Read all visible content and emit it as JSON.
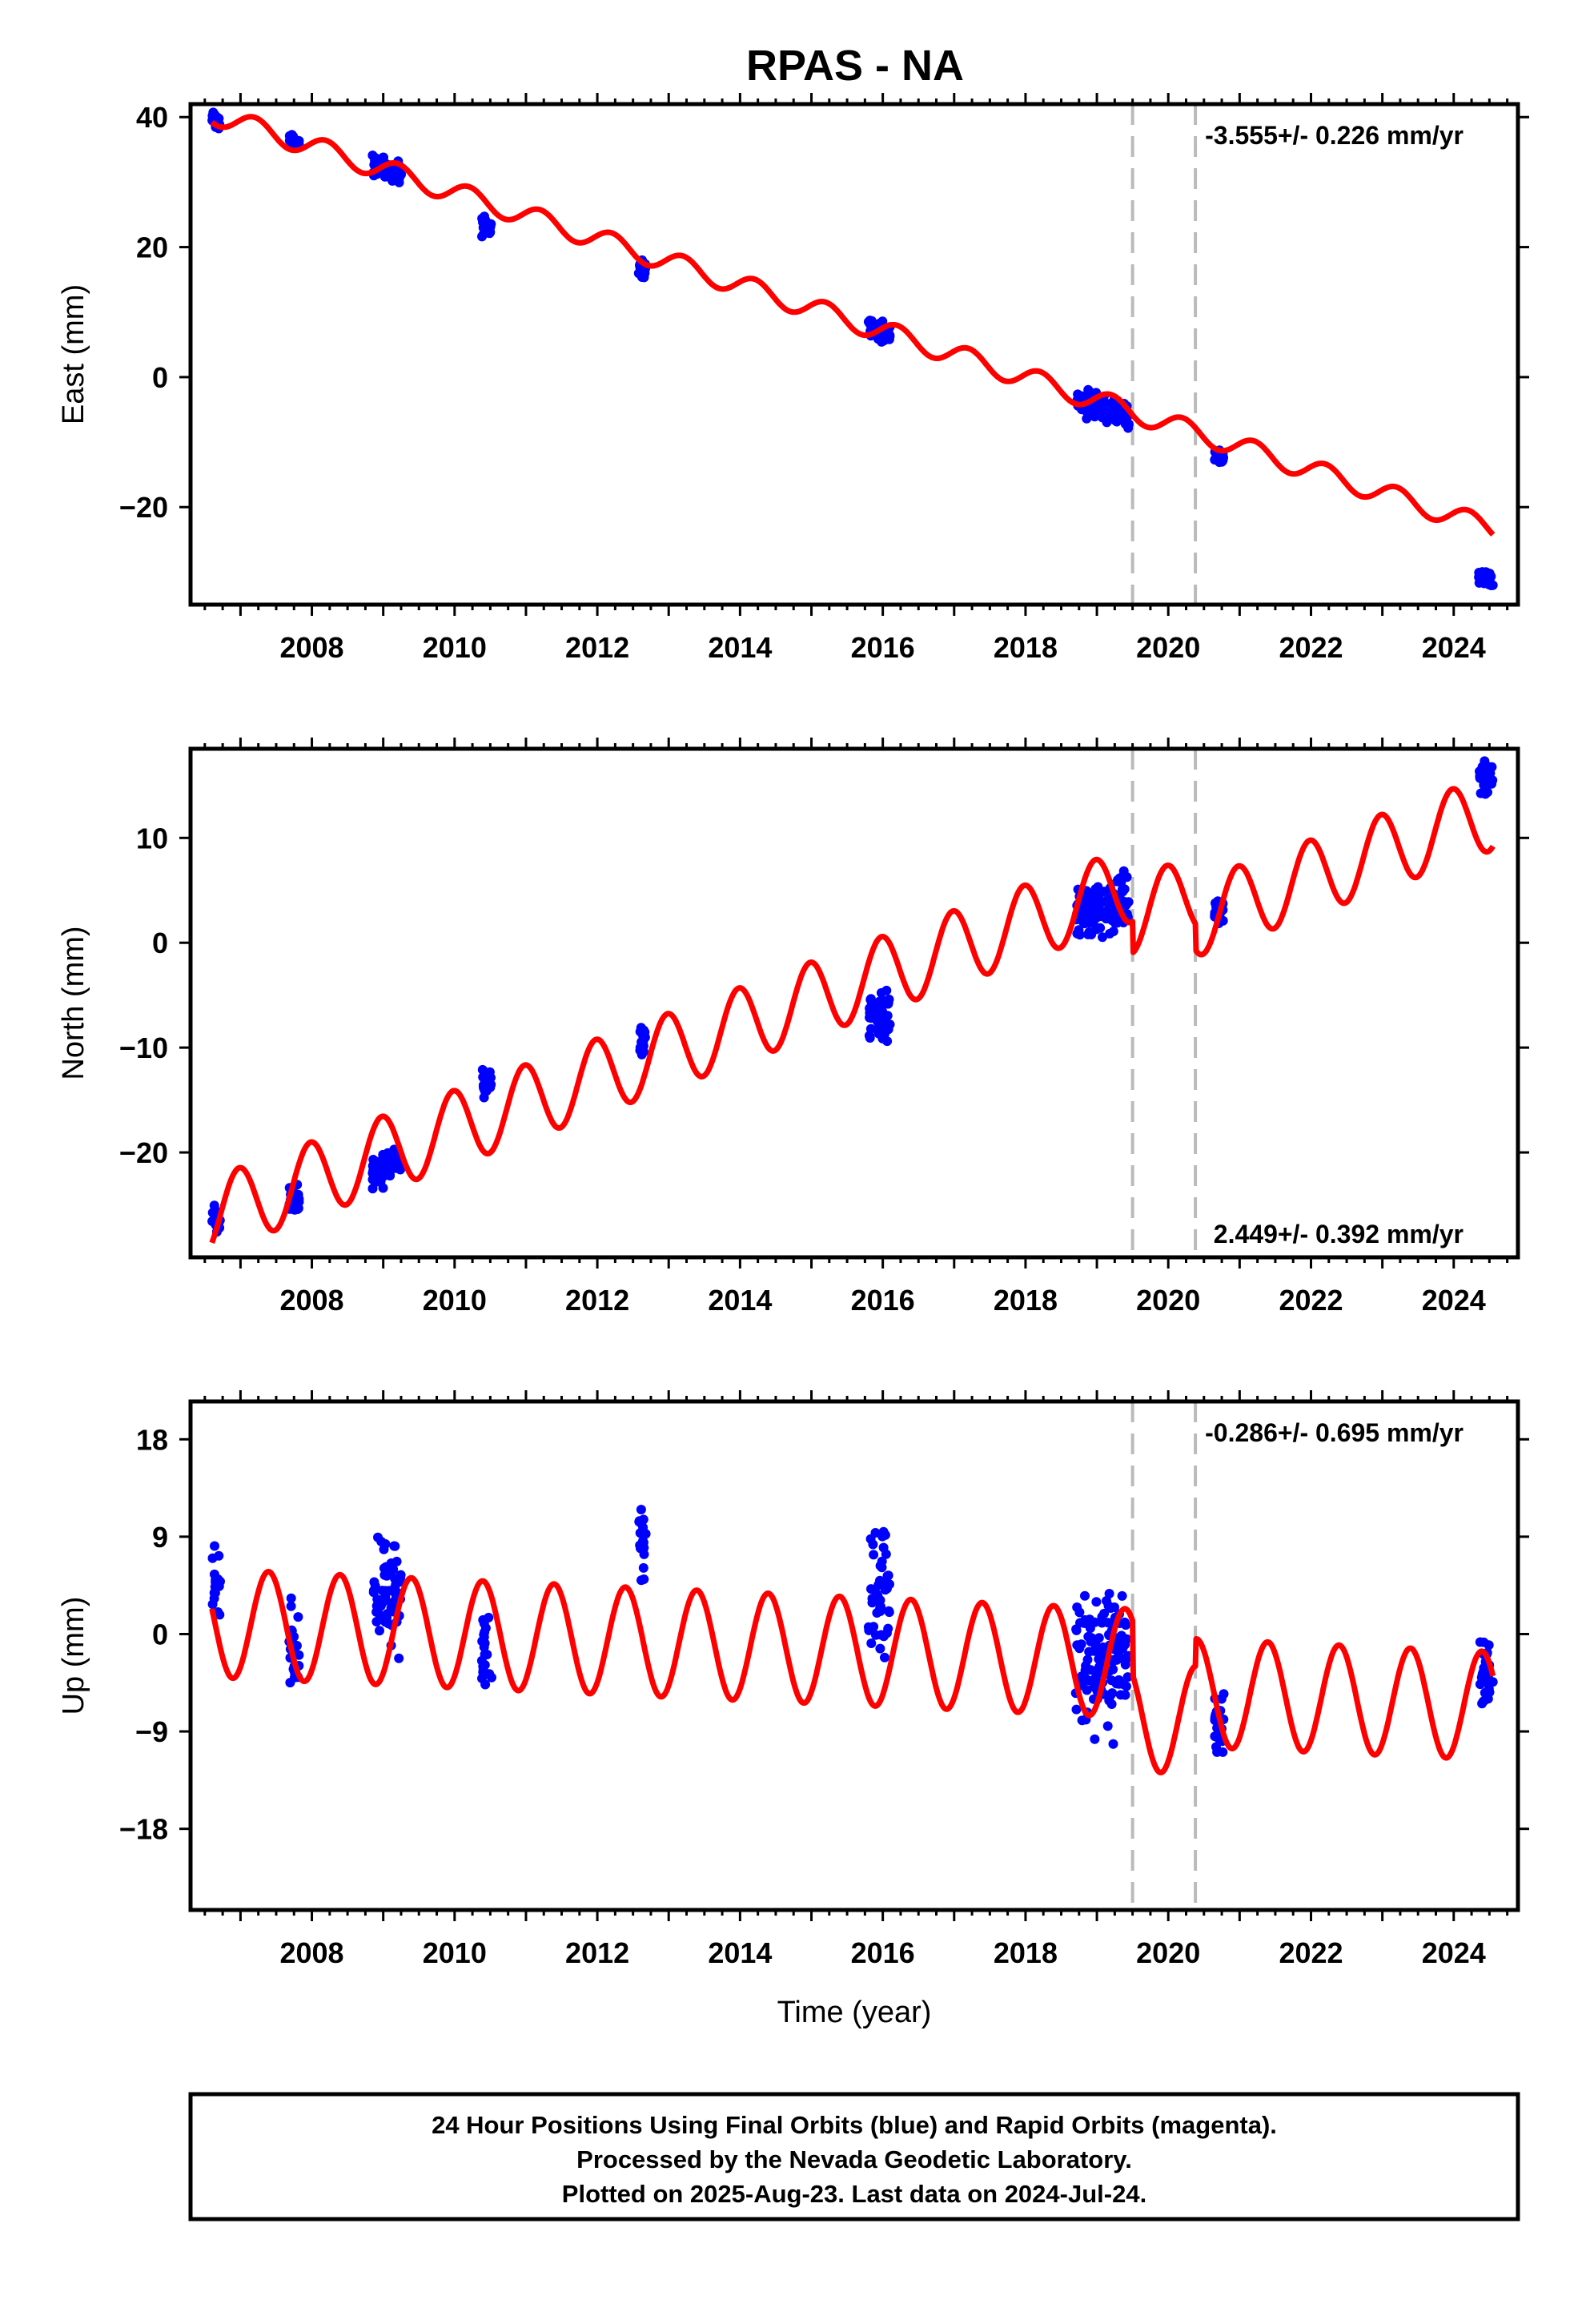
{
  "title": "RPAS - NA",
  "chart_data": [
    {
      "type": "scatter",
      "id": "east",
      "ylabel": "East (mm)",
      "xlabel": "",
      "xlim": [
        2006.3,
        2024.9
      ],
      "ylim": [
        -35,
        42
      ],
      "yticks": [
        -20,
        0,
        20,
        40
      ],
      "xticks": [
        2008,
        2010,
        2012,
        2014,
        2016,
        2018,
        2020,
        2022,
        2024
      ],
      "xtick_labels": [
        "2008",
        "2010",
        "2012",
        "2014",
        "2016",
        "2018",
        "2020",
        "2022",
        "2024"
      ],
      "ytick_labels": [
        "−20",
        "0",
        "20",
        "40"
      ],
      "rate_label": "-3.555+/- 0.226 mm/yr",
      "rate_label_position": "top-right",
      "breaks": [
        2019.5,
        2020.38
      ],
      "model": {
        "intercept_year": 2006.6,
        "intercept": 40.5,
        "rate": -3.555,
        "seasonal_amplitude": 1.6,
        "phase": 0.3,
        "offsets": []
      },
      "clusters": [
        {
          "start": 2006.6,
          "end": 2006.72,
          "center": 39.5,
          "spread": 1.8
        },
        {
          "start": 2007.68,
          "end": 2007.82,
          "center": 36.3,
          "spread": 1.6
        },
        {
          "start": 2008.85,
          "end": 2009.25,
          "center": 32.0,
          "spread": 2.0
        },
        {
          "start": 2010.38,
          "end": 2010.52,
          "center": 23.0,
          "spread": 2.0
        },
        {
          "start": 2012.58,
          "end": 2012.68,
          "center": 16.5,
          "spread": 1.8
        },
        {
          "start": 2015.8,
          "end": 2016.1,
          "center": 7.0,
          "spread": 1.8
        },
        {
          "start": 2018.7,
          "end": 2019.45,
          "center": -4.5,
          "spread": 2.5
        },
        {
          "start": 2020.65,
          "end": 2020.78,
          "center": -12.0,
          "spread": 1.5
        },
        {
          "start": 2024.35,
          "end": 2024.55,
          "center": -31.0,
          "spread": 1.8
        }
      ]
    },
    {
      "type": "scatter",
      "id": "north",
      "ylabel": "North (mm)",
      "xlabel": "",
      "xlim": [
        2006.3,
        2024.9
      ],
      "ylim": [
        -30,
        18.5
      ],
      "yticks": [
        -20,
        -10,
        0,
        10
      ],
      "xticks": [
        2008,
        2010,
        2012,
        2014,
        2016,
        2018,
        2020,
        2022,
        2024
      ],
      "xtick_labels": [
        "2008",
        "2010",
        "2012",
        "2014",
        "2016",
        "2018",
        "2020",
        "2022",
        "2024"
      ],
      "ytick_labels": [
        "−20",
        "−10",
        "0",
        "10"
      ],
      "rate_label": "2.449+/- 0.392 mm/yr",
      "rate_label_position": "bottom-right",
      "breaks": [
        2019.5,
        2020.38
      ],
      "model": {
        "intercept_year": 2006.6,
        "intercept": -26.0,
        "rate": 2.449,
        "seasonal_amplitude": 3.6,
        "phase": 1.7,
        "offsets": [
          {
            "year": 2019.5,
            "value": -3.0
          },
          {
            "year": 2020.38,
            "value": -2.5
          }
        ]
      },
      "clusters": [
        {
          "start": 2006.6,
          "end": 2006.72,
          "center": -26.5,
          "spread": 2.0
        },
        {
          "start": 2007.68,
          "end": 2007.82,
          "center": -24.5,
          "spread": 1.8
        },
        {
          "start": 2008.85,
          "end": 2009.25,
          "center": -21.5,
          "spread": 2.0
        },
        {
          "start": 2010.38,
          "end": 2010.52,
          "center": -13.5,
          "spread": 1.8
        },
        {
          "start": 2012.58,
          "end": 2012.68,
          "center": -9.5,
          "spread": 2.0
        },
        {
          "start": 2015.8,
          "end": 2016.1,
          "center": -7.0,
          "spread": 3.0
        },
        {
          "start": 2018.7,
          "end": 2019.45,
          "center": 3.5,
          "spread": 3.5
        },
        {
          "start": 2020.65,
          "end": 2020.78,
          "center": 3.0,
          "spread": 1.8
        },
        {
          "start": 2024.35,
          "end": 2024.55,
          "center": 15.5,
          "spread": 1.8
        }
      ]
    },
    {
      "type": "scatter",
      "id": "up",
      "ylabel": "Up (mm)",
      "xlabel": "Time (year)",
      "xlim": [
        2006.3,
        2024.9
      ],
      "ylim": [
        -25.5,
        21.5
      ],
      "yticks": [
        -18,
        -9,
        0,
        9,
        18
      ],
      "xticks": [
        2008,
        2010,
        2012,
        2014,
        2016,
        2018,
        2020,
        2022,
        2024
      ],
      "xtick_labels": [
        "2008",
        "2010",
        "2012",
        "2014",
        "2016",
        "2018",
        "2020",
        "2022",
        "2024"
      ],
      "ytick_labels": [
        "−18",
        "−9",
        "0",
        "9",
        "18"
      ],
      "rate_label": "-0.286+/- 0.695 mm/yr",
      "rate_label_position": "top-right",
      "breaks": [
        2019.5,
        2020.38
      ],
      "model": {
        "intercept_year": 2006.6,
        "intercept": 1.0,
        "rate": -0.286,
        "seasonal_amplitude": 5.0,
        "phase": -0.9,
        "offsets": [
          {
            "year": 2019.5,
            "value": -5.0
          },
          {
            "year": 2020.38,
            "value": 2.5
          }
        ]
      },
      "clusters": [
        {
          "start": 2006.6,
          "end": 2006.72,
          "center": 4.0,
          "spread": 4.5
        },
        {
          "start": 2007.68,
          "end": 2007.82,
          "center": -1.0,
          "spread": 6.0
        },
        {
          "start": 2008.85,
          "end": 2009.25,
          "center": 3.5,
          "spread": 6.0
        },
        {
          "start": 2010.38,
          "end": 2010.52,
          "center": -2.0,
          "spread": 5.0
        },
        {
          "start": 2012.58,
          "end": 2012.68,
          "center": 9.0,
          "spread": 5.0
        },
        {
          "start": 2015.8,
          "end": 2016.1,
          "center": 4.0,
          "spread": 6.5
        },
        {
          "start": 2018.7,
          "end": 2019.45,
          "center": -2.0,
          "spread": 8.0
        },
        {
          "start": 2020.65,
          "end": 2020.78,
          "center": -8.5,
          "spread": 4.0
        },
        {
          "start": 2024.35,
          "end": 2024.55,
          "center": -3.5,
          "spread": 3.5
        }
      ]
    }
  ],
  "footer": {
    "line1": "24 Hour Positions Using Final Orbits (blue) and Rapid Orbits (magenta).",
    "line2": "Processed by the Nevada Geodetic Laboratory.",
    "line3": "Plotted on 2025-Aug-23. Last data on 2024-Jul-24."
  },
  "colors": {
    "points": "#0000ff",
    "model": "#ff0000",
    "breaks": "#bbbbbb",
    "frame": "#000000"
  }
}
